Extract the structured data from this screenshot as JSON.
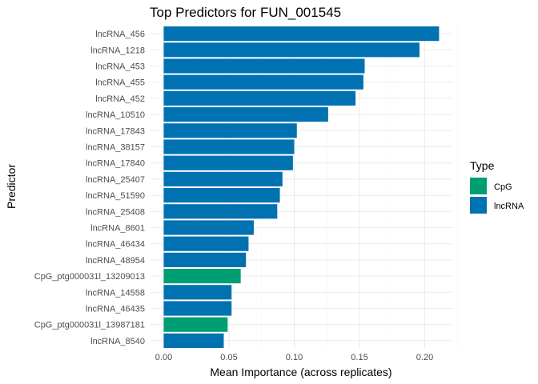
{
  "chart_data": {
    "type": "bar",
    "orientation": "horizontal",
    "title": "Top Predictors for FUN_001545",
    "xlabel": "Mean Importance (across replicates)",
    "ylabel": "Predictor",
    "xlim": [
      0,
      0.22
    ],
    "xticks": [
      "0.00",
      "0.05",
      "0.10",
      "0.15",
      "0.20"
    ],
    "grid": true,
    "legend": {
      "title": "Type",
      "position": "right",
      "entries": [
        {
          "name": "CpG",
          "color": "#009E73"
        },
        {
          "name": "lncRNA",
          "color": "#0072B2"
        }
      ]
    },
    "bars": [
      {
        "category": "lncRNA_456",
        "value": 0.211,
        "type": "lncRNA"
      },
      {
        "category": "lncRNA_1218",
        "value": 0.196,
        "type": "lncRNA"
      },
      {
        "category": "lncRNA_453",
        "value": 0.154,
        "type": "lncRNA"
      },
      {
        "category": "lncRNA_455",
        "value": 0.153,
        "type": "lncRNA"
      },
      {
        "category": "lncRNA_452",
        "value": 0.147,
        "type": "lncRNA"
      },
      {
        "category": "lncRNA_10510",
        "value": 0.126,
        "type": "lncRNA"
      },
      {
        "category": "lncRNA_17843",
        "value": 0.102,
        "type": "lncRNA"
      },
      {
        "category": "lncRNA_38157",
        "value": 0.1,
        "type": "lncRNA"
      },
      {
        "category": "lncRNA_17840",
        "value": 0.099,
        "type": "lncRNA"
      },
      {
        "category": "lncRNA_25407",
        "value": 0.091,
        "type": "lncRNA"
      },
      {
        "category": "lncRNA_51590",
        "value": 0.089,
        "type": "lncRNA"
      },
      {
        "category": "lncRNA_25408",
        "value": 0.087,
        "type": "lncRNA"
      },
      {
        "category": "lncRNA_8601",
        "value": 0.069,
        "type": "lncRNA"
      },
      {
        "category": "lncRNA_46434",
        "value": 0.065,
        "type": "lncRNA"
      },
      {
        "category": "lncRNA_48954",
        "value": 0.063,
        "type": "lncRNA"
      },
      {
        "category": "CpG_ptg000031l_13209013",
        "value": 0.059,
        "type": "CpG"
      },
      {
        "category": "lncRNA_14558",
        "value": 0.052,
        "type": "lncRNA"
      },
      {
        "category": "lncRNA_46435",
        "value": 0.052,
        "type": "lncRNA"
      },
      {
        "category": "CpG_ptg000031l_13987181",
        "value": 0.049,
        "type": "CpG"
      },
      {
        "category": "lncRNA_8540",
        "value": 0.046,
        "type": "lncRNA"
      }
    ]
  }
}
